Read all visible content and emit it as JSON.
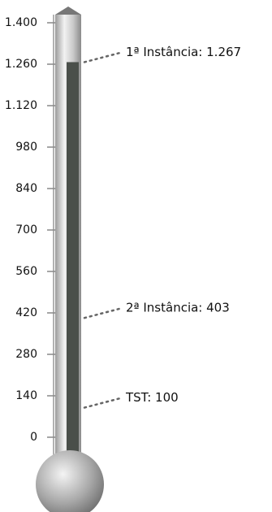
{
  "chart_data": {
    "type": "thermometer",
    "values": [
      1267,
      403,
      100
    ],
    "value_labels": [
      "1ª Instância: 1.267",
      "2ª Instância: 403",
      "TST: 100"
    ],
    "ylim": [
      0,
      1400
    ],
    "yticks": [
      0,
      140,
      280,
      420,
      560,
      700,
      840,
      980,
      {
        "value": 1120,
        "label": "1.120"
      },
      {
        "value": 1260,
        "label": "1.260"
      },
      {
        "value": 1400,
        "label": "1.400"
      }
    ],
    "color": "#4a4f4a"
  }
}
